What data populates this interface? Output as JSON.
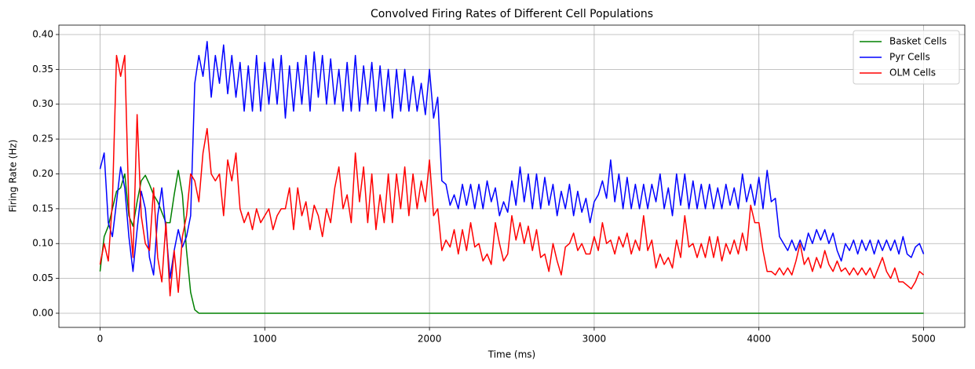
{
  "chart_data": {
    "type": "line",
    "title": "Convolved Firing Rates of Different Cell Populations",
    "x_label": "Time (ms)",
    "y_label": "Firing Rate (Hz)",
    "xlim": [
      -250,
      5250
    ],
    "ylim": [
      -0.0203,
      0.4135
    ],
    "xticks": [
      0,
      1000,
      2000,
      3000,
      4000,
      5000
    ],
    "yticks": [
      {
        "value": 0,
        "label": "0.00"
      },
      0.05,
      {
        "value": 0.1,
        "label": "0.10"
      },
      0.15,
      {
        "value": 0.2,
        "label": "0.20"
      },
      0.25,
      {
        "value": 0.3,
        "label": "0.30"
      },
      0.35,
      {
        "value": 0.4,
        "label": "0.40"
      }
    ],
    "grid": true,
    "legend": "upper right",
    "x": [
      0,
      25,
      50,
      75,
      100,
      125,
      150,
      175,
      200,
      225,
      250,
      275,
      300,
      325,
      350,
      375,
      400,
      425,
      450,
      475,
      500,
      525,
      550,
      575,
      600,
      625,
      650,
      675,
      700,
      725,
      750,
      775,
      800,
      825,
      850,
      875,
      900,
      925,
      950,
      975,
      1000,
      1025,
      1050,
      1075,
      1100,
      1125,
      1150,
      1175,
      1200,
      1225,
      1250,
      1275,
      1300,
      1325,
      1350,
      1375,
      1400,
      1425,
      1450,
      1475,
      1500,
      1525,
      1550,
      1575,
      1600,
      1625,
      1650,
      1675,
      1700,
      1725,
      1750,
      1775,
      1800,
      1825,
      1850,
      1875,
      1900,
      1925,
      1950,
      1975,
      2000,
      2025,
      2050,
      2075,
      2100,
      2125,
      2150,
      2175,
      2200,
      2225,
      2250,
      2275,
      2300,
      2325,
      2350,
      2375,
      2400,
      2425,
      2450,
      2475,
      2500,
      2525,
      2550,
      2575,
      2600,
      2625,
      2650,
      2675,
      2700,
      2725,
      2750,
      2775,
      2800,
      2825,
      2850,
      2875,
      2900,
      2925,
      2950,
      2975,
      3000,
      3025,
      3050,
      3075,
      3100,
      3125,
      3150,
      3175,
      3200,
      3225,
      3250,
      3275,
      3300,
      3325,
      3350,
      3375,
      3400,
      3425,
      3450,
      3475,
      3500,
      3525,
      3550,
      3575,
      3600,
      3625,
      3650,
      3675,
      3700,
      3725,
      3750,
      3775,
      3800,
      3825,
      3850,
      3875,
      3900,
      3925,
      3950,
      3975,
      4000,
      4025,
      4050,
      4075,
      4100,
      4125,
      4150,
      4175,
      4200,
      4225,
      4250,
      4275,
      4300,
      4325,
      4350,
      4375,
      4400,
      4425,
      4450,
      4475,
      4500,
      4525,
      4550,
      4575,
      4600,
      4625,
      4650,
      4675,
      4700,
      4725,
      4750,
      4775,
      4800,
      4825,
      4850,
      4875,
      4900,
      4925,
      4950,
      4975,
      5000
    ],
    "series": [
      {
        "name": "Basket Cells",
        "color": "#008000",
        "values": [
          0.06,
          0.11,
          0.125,
          0.15,
          0.175,
          0.18,
          0.2,
          0.14,
          0.125,
          0.16,
          0.19,
          0.198,
          0.185,
          0.17,
          0.16,
          0.145,
          0.13,
          0.13,
          0.17,
          0.205,
          0.17,
          0.09,
          0.03,
          0.005,
          0,
          0,
          0,
          0,
          0,
          0,
          0,
          0,
          0,
          0,
          0,
          0,
          0,
          0,
          0,
          0,
          0,
          0,
          0,
          0,
          0,
          0,
          0,
          0,
          0,
          0,
          0,
          0,
          0,
          0,
          0,
          0,
          0,
          0,
          0,
          0,
          0,
          0,
          0,
          0,
          0,
          0,
          0,
          0,
          0,
          0,
          0,
          0,
          0,
          0,
          0,
          0,
          0,
          0,
          0,
          0,
          0,
          0,
          0,
          0,
          0,
          0,
          0,
          0,
          0,
          0,
          0,
          0,
          0,
          0,
          0,
          0,
          0,
          0,
          0,
          0,
          0,
          0,
          0,
          0,
          0,
          0,
          0,
          0,
          0,
          0,
          0,
          0,
          0,
          0,
          0,
          0,
          0,
          0,
          0,
          0,
          0,
          0,
          0,
          0,
          0,
          0,
          0,
          0,
          0,
          0,
          0,
          0,
          0,
          0,
          0,
          0,
          0,
          0,
          0,
          0,
          0,
          0,
          0,
          0,
          0,
          0,
          0,
          0,
          0,
          0,
          0,
          0,
          0,
          0,
          0,
          0,
          0,
          0,
          0,
          0,
          0,
          0,
          0,
          0,
          0,
          0,
          0,
          0,
          0,
          0,
          0,
          0,
          0,
          0,
          0,
          0,
          0,
          0,
          0,
          0,
          0,
          0,
          0,
          0,
          0,
          0,
          0,
          0,
          0,
          0,
          0,
          0,
          0,
          0,
          0,
          0,
          0,
          0,
          0,
          0,
          0
        ]
      },
      {
        "name": "Pyr Cells",
        "color": "#0000ff",
        "values": [
          0.207,
          0.23,
          0.13,
          0.11,
          0.16,
          0.21,
          0.18,
          0.11,
          0.06,
          0.12,
          0.175,
          0.15,
          0.08,
          0.055,
          0.14,
          0.18,
          0.12,
          0.05,
          0.09,
          0.12,
          0.095,
          0.11,
          0.14,
          0.33,
          0.37,
          0.34,
          0.39,
          0.31,
          0.37,
          0.33,
          0.385,
          0.315,
          0.37,
          0.31,
          0.36,
          0.29,
          0.355,
          0.29,
          0.37,
          0.29,
          0.36,
          0.3,
          0.365,
          0.3,
          0.37,
          0.28,
          0.355,
          0.29,
          0.36,
          0.3,
          0.37,
          0.29,
          0.375,
          0.31,
          0.37,
          0.3,
          0.365,
          0.3,
          0.35,
          0.29,
          0.36,
          0.29,
          0.37,
          0.29,
          0.355,
          0.3,
          0.36,
          0.29,
          0.355,
          0.29,
          0.35,
          0.28,
          0.35,
          0.29,
          0.35,
          0.29,
          0.34,
          0.29,
          0.33,
          0.285,
          0.35,
          0.28,
          0.31,
          0.19,
          0.185,
          0.155,
          0.17,
          0.15,
          0.185,
          0.155,
          0.185,
          0.15,
          0.185,
          0.15,
          0.19,
          0.16,
          0.18,
          0.14,
          0.16,
          0.145,
          0.19,
          0.155,
          0.21,
          0.16,
          0.2,
          0.15,
          0.2,
          0.15,
          0.195,
          0.155,
          0.185,
          0.14,
          0.175,
          0.15,
          0.185,
          0.14,
          0.175,
          0.145,
          0.165,
          0.13,
          0.16,
          0.17,
          0.19,
          0.165,
          0.22,
          0.16,
          0.2,
          0.15,
          0.195,
          0.15,
          0.185,
          0.15,
          0.185,
          0.15,
          0.185,
          0.16,
          0.2,
          0.15,
          0.18,
          0.14,
          0.2,
          0.155,
          0.2,
          0.15,
          0.19,
          0.15,
          0.185,
          0.15,
          0.185,
          0.15,
          0.18,
          0.15,
          0.185,
          0.155,
          0.18,
          0.15,
          0.2,
          0.16,
          0.185,
          0.155,
          0.195,
          0.15,
          0.205,
          0.16,
          0.165,
          0.11,
          0.1,
          0.09,
          0.105,
          0.09,
          0.105,
          0.09,
          0.115,
          0.1,
          0.12,
          0.105,
          0.12,
          0.1,
          0.115,
          0.09,
          0.075,
          0.1,
          0.09,
          0.105,
          0.085,
          0.105,
          0.09,
          0.105,
          0.085,
          0.105,
          0.09,
          0.105,
          0.09,
          0.105,
          0.085,
          0.11,
          0.085,
          0.08,
          0.095,
          0.1,
          0.085
        ]
      },
      {
        "name": "OLM Cells",
        "color": "#ff0000",
        "values": [
          0.07,
          0.1,
          0.075,
          0.16,
          0.37,
          0.34,
          0.37,
          0.15,
          0.08,
          0.285,
          0.14,
          0.1,
          0.09,
          0.18,
          0.08,
          0.045,
          0.13,
          0.025,
          0.09,
          0.03,
          0.11,
          0.14,
          0.2,
          0.19,
          0.16,
          0.23,
          0.265,
          0.2,
          0.19,
          0.2,
          0.14,
          0.22,
          0.19,
          0.23,
          0.15,
          0.13,
          0.145,
          0.12,
          0.15,
          0.13,
          0.14,
          0.15,
          0.12,
          0.14,
          0.15,
          0.15,
          0.18,
          0.12,
          0.18,
          0.14,
          0.16,
          0.12,
          0.155,
          0.14,
          0.11,
          0.15,
          0.13,
          0.18,
          0.21,
          0.15,
          0.17,
          0.13,
          0.23,
          0.16,
          0.21,
          0.13,
          0.2,
          0.12,
          0.17,
          0.13,
          0.2,
          0.13,
          0.2,
          0.15,
          0.21,
          0.14,
          0.2,
          0.15,
          0.19,
          0.16,
          0.22,
          0.14,
          0.15,
          0.09,
          0.105,
          0.095,
          0.12,
          0.085,
          0.12,
          0.09,
          0.13,
          0.095,
          0.1,
          0.075,
          0.085,
          0.07,
          0.13,
          0.1,
          0.075,
          0.085,
          0.14,
          0.105,
          0.13,
          0.1,
          0.125,
          0.09,
          0.12,
          0.08,
          0.085,
          0.06,
          0.1,
          0.075,
          0.055,
          0.095,
          0.1,
          0.115,
          0.09,
          0.1,
          0.085,
          0.085,
          0.11,
          0.09,
          0.13,
          0.1,
          0.105,
          0.085,
          0.11,
          0.095,
          0.115,
          0.085,
          0.105,
          0.09,
          0.14,
          0.09,
          0.105,
          0.065,
          0.085,
          0.07,
          0.08,
          0.065,
          0.105,
          0.08,
          0.14,
          0.095,
          0.1,
          0.08,
          0.1,
          0.08,
          0.11,
          0.08,
          0.11,
          0.075,
          0.1,
          0.085,
          0.105,
          0.085,
          0.115,
          0.09,
          0.155,
          0.13,
          0.13,
          0.09,
          0.06,
          0.06,
          0.055,
          0.065,
          0.055,
          0.065,
          0.055,
          0.075,
          0.1,
          0.07,
          0.08,
          0.06,
          0.08,
          0.065,
          0.09,
          0.07,
          0.06,
          0.075,
          0.06,
          0.065,
          0.055,
          0.065,
          0.055,
          0.065,
          0.055,
          0.065,
          0.05,
          0.065,
          0.08,
          0.06,
          0.05,
          0.065,
          0.045,
          0.045,
          0.04,
          0.035,
          0.045,
          0.06,
          0.055
        ]
      }
    ]
  }
}
